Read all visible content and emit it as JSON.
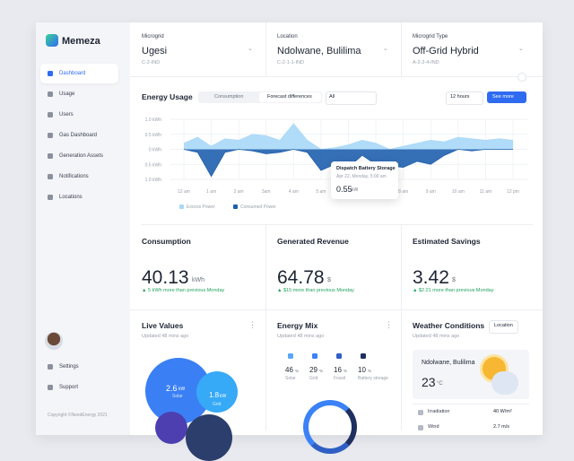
{
  "sidebar": {
    "brand": "Memeza",
    "nav": [
      "Dashboard",
      "Usage",
      "Users",
      "Gas Dashboard",
      "Generation Assets",
      "Notifications",
      "Locations"
    ],
    "footer_nav": [
      "Settings",
      "Support"
    ],
    "copyright": "Copyright ©NeedEnergy 2021"
  },
  "filters": [
    {
      "label": "Microgrid",
      "value": "Ugesi",
      "code": "C-2-IND"
    },
    {
      "label": "Location",
      "value": "Ndolwane, Bulilima",
      "code": "C-2-1-1-IND"
    },
    {
      "label": "Microgrid Type",
      "value": "Off-Grid Hybrid",
      "code": "A-2-2-4-IND"
    }
  ],
  "energy_usage": {
    "title": "Energy Usage",
    "tabs": [
      "Consumption",
      "Forecast differences"
    ],
    "filter": "All",
    "range": "12 hours",
    "button": "See more",
    "tooltip": {
      "title": "Dispatch Battery Storage",
      "date": "Apr 22, Monday, 5:00 am",
      "value": 0.55,
      "unit": "kW"
    }
  },
  "chart_data": {
    "type": "area",
    "x": [
      0,
      0.5,
      1,
      1.5,
      2,
      2.5,
      3,
      3.5,
      4,
      4.5,
      5,
      5.5,
      6,
      6.5,
      7,
      7.5,
      8,
      8.5,
      9,
      9.5,
      10,
      10.5,
      11,
      11.5,
      12
    ],
    "series": [
      {
        "name": "Excess Power",
        "color": "#a9d8f8",
        "values": [
          0.2,
          0.4,
          0.1,
          0.35,
          0.3,
          0.5,
          0.45,
          0.3,
          0.85,
          0.3,
          0,
          0.05,
          0.15,
          0.3,
          0.2,
          0,
          0.1,
          0.2,
          0.3,
          0.25,
          0.4,
          0.35,
          0.3,
          0.35,
          0.3
        ]
      },
      {
        "name": "Consumed Power",
        "color": "#1f5fae",
        "values": [
          0,
          -0.1,
          -0.9,
          -0.1,
          0,
          -0.05,
          -0.15,
          -0.1,
          0,
          -0.1,
          -0.7,
          -0.5,
          -0.6,
          -0.2,
          -0.5,
          -0.55,
          -0.6,
          -0.4,
          -0.5,
          -0.2,
          0,
          -0.05,
          0,
          0,
          0
        ]
      }
    ],
    "xlim": [
      0,
      12
    ],
    "xticks": [
      {
        "value": 0,
        "label": "12 am"
      },
      {
        "value": 1,
        "label": "1 am"
      },
      {
        "value": 2,
        "label": "2 am"
      },
      {
        "value": 3,
        "label": "3am"
      },
      {
        "value": 4,
        "label": "4 am"
      },
      {
        "value": 5,
        "label": "5 am"
      },
      {
        "value": 6,
        "label": "6 am"
      },
      {
        "value": 7,
        "label": "7 am"
      },
      {
        "value": 8,
        "label": "8 am"
      },
      {
        "value": 9,
        "label": "9 am"
      },
      {
        "value": 10,
        "label": "10 am"
      },
      {
        "value": 11,
        "label": "11 am"
      },
      {
        "value": 12,
        "label": "12 pm"
      }
    ],
    "ylim": [
      -1,
      1
    ],
    "yticks": [
      {
        "value": 1,
        "label": "1.0 kWh"
      },
      {
        "value": 0.5,
        "label": "0.5 kWh"
      },
      {
        "value": 0,
        "label": "0 kWh"
      },
      {
        "value": -0.5,
        "label": "0.5 kWh"
      },
      {
        "value": -1,
        "label": "1.0 kWh"
      }
    ],
    "grid": true,
    "legend": "bottom-left"
  },
  "stats": [
    {
      "title": "Consumption",
      "value": 40.13,
      "unit": "kWh",
      "change": "5 kWh more than previous Monday"
    },
    {
      "title": "Generated Revenue",
      "value": 64.78,
      "unit": "$",
      "change": "$15 more than previous Monday"
    },
    {
      "title": "Estimated Savings",
      "value": 3.42,
      "unit": "$",
      "change": "$2.21 more than previous Monday"
    }
  ],
  "live_values": {
    "title": "Live Values",
    "updated": "Updated 48 mins ago",
    "bubbles": [
      {
        "value": 2.6,
        "unit": "kW",
        "label": "Solar"
      },
      {
        "value": 1.8,
        "unit": "kW",
        "label": "Grid"
      }
    ]
  },
  "energy_mix": {
    "title": "Energy Mix",
    "updated": "Updated 48 mins ago",
    "unit": "%",
    "items": [
      {
        "value": 46,
        "label": "Solar",
        "color": "#5aa6f5"
      },
      {
        "value": 29,
        "label": "Grid",
        "color": "#3b82f6"
      },
      {
        "value": 16,
        "label": "Fossil",
        "color": "#2f5fc4"
      },
      {
        "value": 10,
        "label": "Battery storage",
        "color": "#1e2f60"
      }
    ]
  },
  "weather": {
    "title": "Weather Conditions",
    "updated": "Updated 48 mins ago",
    "button": "Location",
    "location": "Ndolwane, Bulilima",
    "temperature": 23,
    "temp_unit": "°C",
    "metrics": [
      {
        "label": "Irradiation",
        "value": "40 W/m²"
      },
      {
        "label": "Wind",
        "value": "2.7 m/s"
      }
    ]
  }
}
